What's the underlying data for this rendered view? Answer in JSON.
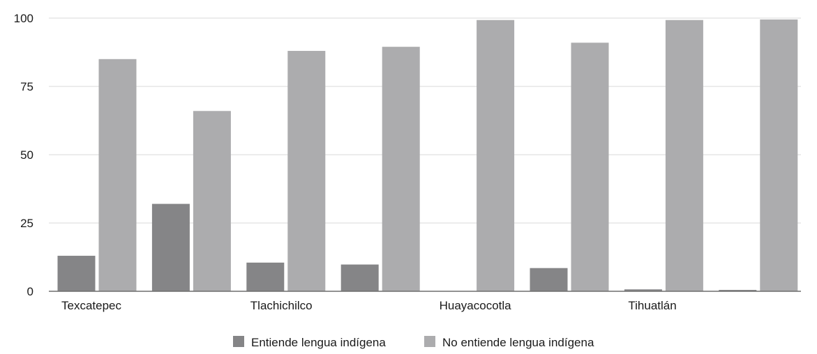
{
  "chart_data": {
    "type": "bar",
    "categories": [
      "Texcatepec",
      "",
      "Tlachichilco",
      "",
      "Huayacocotla",
      "",
      "Tihuatlán",
      ""
    ],
    "series": [
      {
        "name": "Entiende lengua indígena",
        "values": [
          13,
          32,
          10.5,
          9.8,
          0,
          8.5,
          0.7,
          0.5
        ],
        "color": "#858587"
      },
      {
        "name": "No entiende lengua indígena",
        "values": [
          85,
          66,
          88,
          89.5,
          99.3,
          91,
          99.3,
          99.5
        ],
        "color": "#acacae"
      }
    ],
    "yticks": [
      0,
      25,
      50,
      75,
      100
    ],
    "ylim": [
      0,
      100
    ],
    "title": "",
    "xlabel": "",
    "ylabel": "",
    "grid": true,
    "legend_position": "bottom-center"
  }
}
